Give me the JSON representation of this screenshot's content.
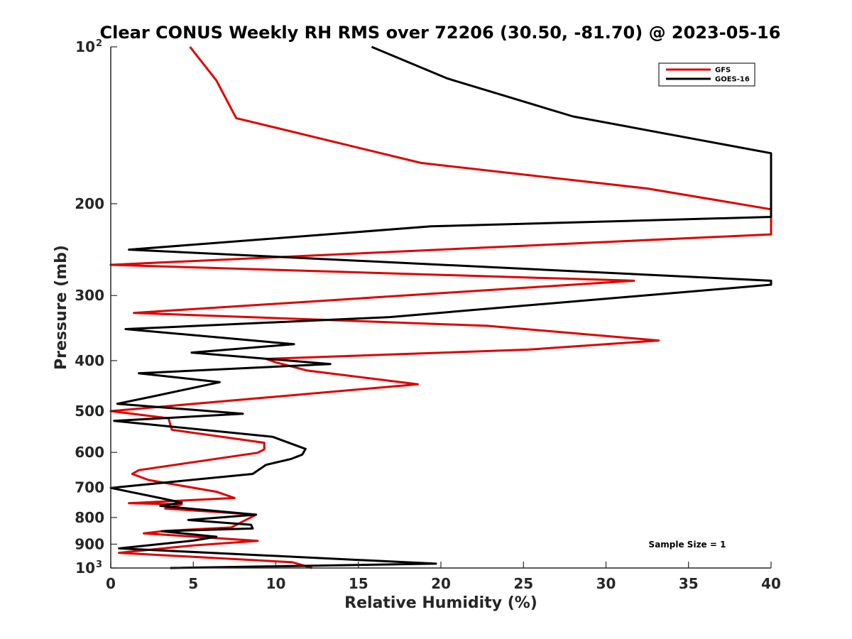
{
  "chart_data": {
    "type": "line",
    "title": "Clear CONUS Weekly RH RMS over 72206 (30.50, -81.70) @ 2023-05-16",
    "xlabel": "Relative Humidity (%)",
    "ylabel": "Pressure (mb)",
    "xlim": [
      0,
      40
    ],
    "ylim": [
      100,
      1000
    ],
    "y_scale": "log",
    "y_reversed": true,
    "grid": false,
    "legend_position": "top-right",
    "x_ticks": [
      {
        "value": 0,
        "label": "0"
      },
      {
        "value": 5,
        "label": "5"
      },
      {
        "value": 10,
        "label": "10"
      },
      {
        "value": 15,
        "label": "15"
      },
      {
        "value": 20,
        "label": "20"
      },
      {
        "value": 25,
        "label": "25"
      },
      {
        "value": 30,
        "label": "30"
      },
      {
        "value": 35,
        "label": "35"
      },
      {
        "value": 40,
        "label": "40"
      }
    ],
    "y_ticks": [
      {
        "value": 100,
        "label": "10",
        "sup": "2"
      },
      {
        "value": 200,
        "label": "200"
      },
      {
        "value": 300,
        "label": "300"
      },
      {
        "value": 400,
        "label": "400"
      },
      {
        "value": 500,
        "label": "500"
      },
      {
        "value": 600,
        "label": "600"
      },
      {
        "value": 700,
        "label": "700"
      },
      {
        "value": 800,
        "label": "800"
      },
      {
        "value": 900,
        "label": "900"
      },
      {
        "value": 1000,
        "label": "10",
        "sup": "3"
      }
    ],
    "annotation": "Sample Size = 1",
    "series": [
      {
        "name": "GFS",
        "color": "#e00000",
        "points": [
          [
            4.8,
            100
          ],
          [
            6.4,
            116
          ],
          [
            7.6,
            137
          ],
          [
            18.8,
            167
          ],
          [
            32.5,
            187
          ],
          [
            40,
            205
          ],
          [
            40,
            229
          ],
          [
            0,
            262
          ],
          [
            31.7,
            281
          ],
          [
            1.4,
            324
          ],
          [
            22.8,
            343
          ],
          [
            33.2,
            366
          ],
          [
            25.3,
            381
          ],
          [
            9.4,
            397
          ],
          [
            10.0,
            403
          ],
          [
            11.9,
            418
          ],
          [
            18.6,
            444
          ],
          [
            0,
            500
          ],
          [
            3.5,
            516
          ],
          [
            3.7,
            543
          ],
          [
            9.3,
            575
          ],
          [
            9.3,
            592
          ],
          [
            8.9,
            601
          ],
          [
            1.7,
            649
          ],
          [
            1.3,
            660
          ],
          [
            2.3,
            678
          ],
          [
            6.4,
            714
          ],
          [
            7.5,
            734
          ],
          [
            1.1,
            751
          ],
          [
            4.3,
            755
          ],
          [
            3.3,
            769
          ],
          [
            8.8,
            790
          ],
          [
            7.3,
            836
          ],
          [
            3.3,
            849
          ],
          [
            2.0,
            858
          ],
          [
            8.9,
            887
          ],
          [
            5.0,
            905
          ],
          [
            0.5,
            935
          ],
          [
            11.0,
            975
          ],
          [
            12.2,
            1000
          ]
        ]
      },
      {
        "name": "GOES-16",
        "color": "#000000",
        "points": [
          [
            15.8,
            100
          ],
          [
            20.4,
            115
          ],
          [
            28.0,
            136
          ],
          [
            40,
            160
          ],
          [
            40,
            212
          ],
          [
            19.4,
            221
          ],
          [
            1.1,
            245
          ],
          [
            40,
            281
          ],
          [
            40,
            286
          ],
          [
            16.9,
            330
          ],
          [
            0.9,
            348
          ],
          [
            11.1,
            372
          ],
          [
            4.9,
            386
          ],
          [
            13.3,
            406
          ],
          [
            1.7,
            423
          ],
          [
            6.6,
            440
          ],
          [
            2.5,
            469
          ],
          [
            0.4,
            484
          ],
          [
            8.0,
            506
          ],
          [
            0.2,
            522
          ],
          [
            9.8,
            560
          ],
          [
            11.8,
            591
          ],
          [
            11.6,
            606
          ],
          [
            10.9,
            618
          ],
          [
            9.4,
            634
          ],
          [
            8.6,
            660
          ],
          [
            0,
            702
          ],
          [
            2.9,
            733
          ],
          [
            4.3,
            749
          ],
          [
            3.0,
            760
          ],
          [
            8.8,
            790
          ],
          [
            4.7,
            809
          ],
          [
            8.5,
            826
          ],
          [
            8.6,
            840
          ],
          [
            3.1,
            850
          ],
          [
            6.4,
            871
          ],
          [
            5.0,
            886
          ],
          [
            0.5,
            917
          ],
          [
            19.7,
            981
          ],
          [
            3.6,
            1000
          ]
        ]
      }
    ]
  }
}
